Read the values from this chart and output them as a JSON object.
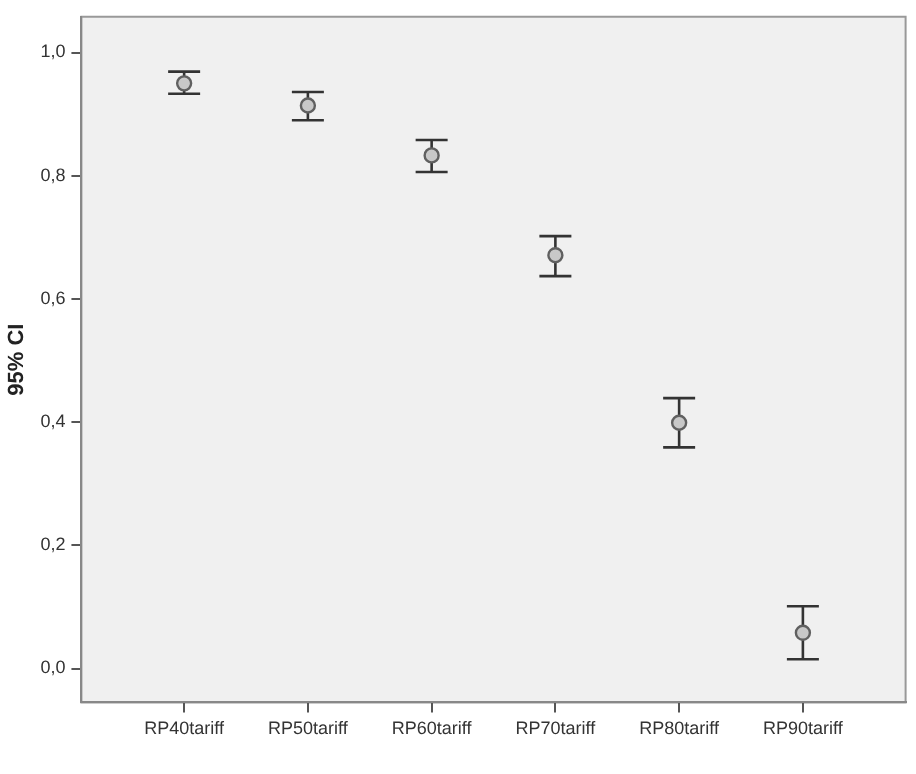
{
  "chart_data": {
    "type": "scatter",
    "ylabel": "95% CI",
    "categories": [
      "RP40tariff",
      "RP50tariff",
      "RP60tariff",
      "RP70tariff",
      "RP80tariff",
      "RP90tariff"
    ],
    "series": [
      {
        "color": "#606060",
        "values": [
          0.95,
          0.914,
          0.833,
          0.671,
          0.399,
          0.058
        ],
        "errors": [
          [
            0.933,
            0.969
          ],
          [
            0.89,
            0.936
          ],
          [
            0.806,
            0.858
          ],
          [
            0.637,
            0.702
          ],
          [
            0.359,
            0.439
          ],
          [
            0.015,
            0.101
          ]
        ]
      }
    ],
    "ylim": [
      -0.055,
      1.058
    ],
    "yticks": [
      {
        "value": 0,
        "label": "0,0"
      },
      {
        "value": 0.2,
        "label": "0,2"
      },
      {
        "value": 0.4,
        "label": "0,4"
      },
      {
        "value": 0.6,
        "label": "0,6"
      },
      {
        "value": 0.8,
        "label": "0,8"
      },
      {
        "value": 1,
        "label": "1,0"
      }
    ],
    "grid": false,
    "legend": false,
    "marker": "circle"
  }
}
